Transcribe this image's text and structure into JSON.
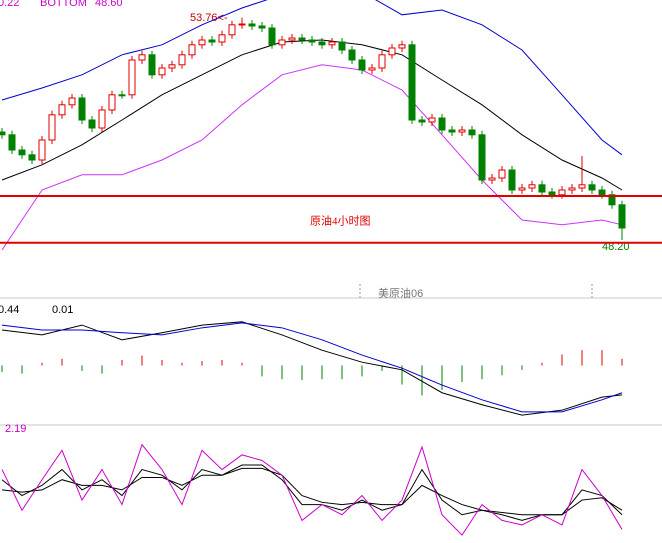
{
  "chart_data": [
    {
      "type": "candlestick",
      "title": "原油4小时图",
      "indicator_texts": [
        "0.22",
        "BOTTOM",
        "48.60"
      ],
      "high_label": "53.76<-",
      "low_label": "48.20",
      "footer_label": "美原油06",
      "ylim": [
        46.95,
        54.2
      ],
      "up_color": "#e00000",
      "down_color": "#008000",
      "open": [
        50.9,
        50.83,
        50.45,
        50.33,
        50.2,
        50.7,
        51.33,
        51.58,
        51.75,
        51.2,
        51.0,
        51.45,
        51.83,
        51.83,
        52.7,
        52.83,
        52.33,
        52.5,
        52.58,
        52.83,
        53.08,
        53.2,
        53.15,
        53.33,
        53.58,
        53.6,
        53.55,
        53.5,
        53.08,
        53.2,
        53.25,
        53.2,
        53.15,
        53.08,
        53.15,
        52.95,
        52.7,
        52.45,
        52.5,
        52.83,
        53.0,
        53.08,
        51.2,
        51.15,
        51.25,
        50.95,
        50.9,
        50.95,
        50.83,
        49.7,
        49.75,
        49.95,
        49.45,
        49.5,
        49.58,
        49.4,
        49.33,
        49.45,
        49.5,
        49.58,
        49.45,
        49.33,
        49.08
      ],
      "high": [
        51.0,
        50.93,
        50.55,
        50.43,
        50.8,
        51.43,
        51.68,
        51.85,
        51.85,
        51.3,
        51.55,
        51.93,
        51.93,
        52.8,
        52.93,
        52.93,
        52.6,
        52.68,
        52.93,
        53.18,
        53.3,
        53.3,
        53.43,
        53.68,
        53.76,
        53.7,
        53.65,
        53.6,
        53.3,
        53.35,
        53.35,
        53.3,
        53.25,
        53.25,
        53.25,
        53.05,
        52.8,
        52.6,
        52.93,
        53.1,
        53.18,
        53.18,
        51.3,
        51.35,
        51.35,
        51.05,
        51.05,
        51.05,
        50.93,
        49.85,
        50.05,
        50.05,
        49.6,
        49.68,
        49.68,
        49.5,
        49.55,
        49.6,
        50.3,
        49.68,
        49.55,
        49.43,
        49.18
      ],
      "low": [
        50.73,
        50.35,
        50.23,
        50.1,
        50.1,
        50.6,
        51.23,
        51.48,
        51.1,
        50.9,
        50.9,
        51.35,
        51.73,
        51.73,
        52.6,
        52.23,
        52.23,
        52.4,
        52.48,
        52.73,
        52.98,
        53.05,
        53.05,
        53.23,
        53.48,
        53.45,
        53.4,
        52.98,
        52.98,
        53.1,
        53.1,
        53.05,
        52.98,
        52.98,
        52.85,
        52.6,
        52.35,
        52.35,
        52.4,
        52.73,
        52.9,
        51.1,
        51.05,
        51.05,
        50.85,
        50.8,
        50.8,
        50.73,
        49.6,
        49.6,
        49.65,
        49.35,
        49.35,
        49.4,
        49.3,
        49.23,
        49.23,
        49.35,
        49.4,
        49.35,
        49.23,
        48.98,
        48.2
      ],
      "close": [
        50.83,
        50.45,
        50.33,
        50.2,
        50.7,
        51.33,
        51.58,
        51.75,
        51.2,
        51.0,
        51.45,
        51.83,
        51.83,
        52.7,
        52.83,
        52.33,
        52.5,
        52.58,
        52.83,
        53.08,
        53.2,
        53.15,
        53.33,
        53.58,
        53.6,
        53.55,
        53.5,
        53.08,
        53.2,
        53.25,
        53.2,
        53.15,
        53.08,
        53.15,
        52.95,
        52.7,
        52.45,
        52.5,
        52.83,
        53.0,
        53.08,
        51.2,
        51.15,
        51.25,
        50.95,
        50.9,
        50.95,
        50.83,
        49.7,
        49.75,
        49.95,
        49.45,
        49.5,
        49.58,
        49.4,
        49.33,
        49.45,
        49.5,
        49.58,
        49.45,
        49.33,
        49.08,
        48.5
      ],
      "lines": [
        {
          "color": "#000000",
          "x": [
            0,
            4,
            8,
            12,
            16,
            20,
            24,
            28,
            32,
            36,
            40,
            44,
            48,
            52,
            56,
            60,
            62
          ],
          "values": [
            49.7,
            50.08,
            50.58,
            51.2,
            51.83,
            52.33,
            52.83,
            53.15,
            53.2,
            53.08,
            52.83,
            52.2,
            51.58,
            50.83,
            50.2,
            49.75,
            49.45
          ]
        },
        {
          "color": "#0000cc",
          "x": [
            0,
            4,
            8,
            12,
            16,
            20,
            24,
            28,
            32,
            36,
            40,
            44,
            48,
            52,
            56,
            60,
            62
          ],
          "values": [
            51.7,
            52.0,
            52.33,
            52.83,
            53.08,
            53.58,
            54.0,
            54.33,
            54.33,
            54.4,
            53.83,
            53.95,
            53.58,
            52.95,
            51.83,
            50.7,
            50.33
          ]
        },
        {
          "color": "#cc33ff",
          "x": [
            0,
            4,
            8,
            12,
            16,
            20,
            24,
            28,
            32,
            36,
            40,
            44,
            48,
            52,
            56,
            60,
            62
          ],
          "values": [
            47.95,
            49.45,
            49.83,
            49.83,
            50.2,
            50.7,
            51.58,
            52.33,
            52.58,
            52.45,
            51.95,
            50.83,
            49.7,
            48.7,
            48.58,
            48.7,
            48.58
          ]
        }
      ],
      "hlines": [
        49.3,
        48.13
      ],
      "hline_color": "#e00000"
    },
    {
      "type": "macd",
      "texts": [
        "0.44",
        "0.01"
      ],
      "ylim": [
        -1,
        1.2
      ],
      "up_color": "#e00000",
      "down_color": "#008000",
      "bars": {
        "x": [
          0,
          2,
          4,
          6,
          8,
          10,
          12,
          14,
          16,
          18,
          20,
          22,
          24,
          26,
          28,
          30,
          32,
          34,
          36,
          38,
          40,
          42,
          44,
          46,
          48,
          50,
          52,
          54,
          56,
          58,
          60,
          62
        ],
        "values": [
          -0.12,
          -0.15,
          0.05,
          0.12,
          -0.1,
          -0.15,
          0.1,
          0.18,
          0.1,
          0.05,
          0.08,
          0.1,
          0.05,
          -0.2,
          -0.25,
          -0.27,
          -0.25,
          -0.25,
          -0.2,
          -0.1,
          -0.35,
          -0.55,
          -0.45,
          -0.3,
          -0.25,
          -0.18,
          -0.08,
          0.05,
          0.2,
          0.28,
          0.28,
          0.12
        ]
      },
      "lines": [
        {
          "color": "#000000",
          "x": [
            0,
            4,
            8,
            12,
            16,
            20,
            24,
            28,
            32,
            36,
            40,
            44,
            48,
            52,
            56,
            60,
            62
          ],
          "values": [
            0.65,
            0.56,
            0.74,
            0.47,
            0.6,
            0.74,
            0.8,
            0.56,
            0.28,
            0.06,
            -0.08,
            -0.5,
            -0.72,
            -0.91,
            -0.82,
            -0.58,
            -0.54
          ]
        },
        {
          "color": "#0000cc",
          "x": [
            0,
            4,
            8,
            12,
            16,
            20,
            24,
            28,
            32,
            36,
            40,
            44,
            48,
            52,
            56,
            60,
            62
          ],
          "values": [
            0.74,
            0.65,
            0.65,
            0.6,
            0.56,
            0.69,
            0.78,
            0.69,
            0.47,
            0.19,
            -0.05,
            -0.36,
            -0.63,
            -0.85,
            -0.85,
            -0.63,
            -0.5
          ]
        }
      ]
    },
    {
      "type": "line",
      "texts": [
        "2.19"
      ],
      "ylim": [
        0,
        100
      ],
      "lines": [
        {
          "color": "#000000",
          "x": [
            0,
            2,
            4,
            6,
            8,
            10,
            12,
            14,
            16,
            18,
            20,
            22,
            24,
            26,
            28,
            30,
            32,
            34,
            36,
            38,
            40,
            42,
            44,
            46,
            48,
            50,
            52,
            54,
            56,
            58,
            60,
            62
          ],
          "values": [
            56,
            42,
            51,
            65,
            47,
            56,
            42,
            65,
            60,
            47,
            65,
            60,
            69,
            69,
            56,
            34,
            34,
            29,
            38,
            29,
            34,
            65,
            38,
            25,
            29,
            25,
            20,
            25,
            25,
            47,
            42,
            25
          ]
        },
        {
          "color": "#000000",
          "x": [
            0,
            2,
            4,
            6,
            8,
            10,
            12,
            14,
            16,
            18,
            20,
            22,
            24,
            26,
            28,
            30,
            32,
            34,
            36,
            38,
            40,
            42,
            44,
            46,
            48,
            50,
            52,
            54,
            56,
            58,
            60,
            62
          ],
          "values": [
            47,
            45,
            47,
            56,
            51,
            51,
            47,
            58,
            58,
            51,
            60,
            60,
            66,
            66,
            60,
            42,
            36,
            34,
            36,
            34,
            34,
            51,
            42,
            34,
            29,
            27,
            25,
            25,
            25,
            38,
            40,
            29
          ]
        },
        {
          "color": "#cc00cc",
          "x": [
            0,
            2,
            4,
            6,
            8,
            10,
            12,
            14,
            16,
            18,
            20,
            22,
            24,
            26,
            28,
            30,
            32,
            34,
            36,
            38,
            40,
            42,
            44,
            46,
            48,
            50,
            52,
            54,
            56,
            58,
            60,
            62
          ],
          "values": [
            65,
            29,
            56,
            82,
            38,
            65,
            34,
            87,
            65,
            34,
            82,
            65,
            78,
            73,
            60,
            20,
            34,
            25,
            42,
            20,
            38,
            85,
            25,
            7,
            34,
            20,
            16,
            25,
            16,
            65,
            42,
            12
          ]
        }
      ]
    }
  ]
}
